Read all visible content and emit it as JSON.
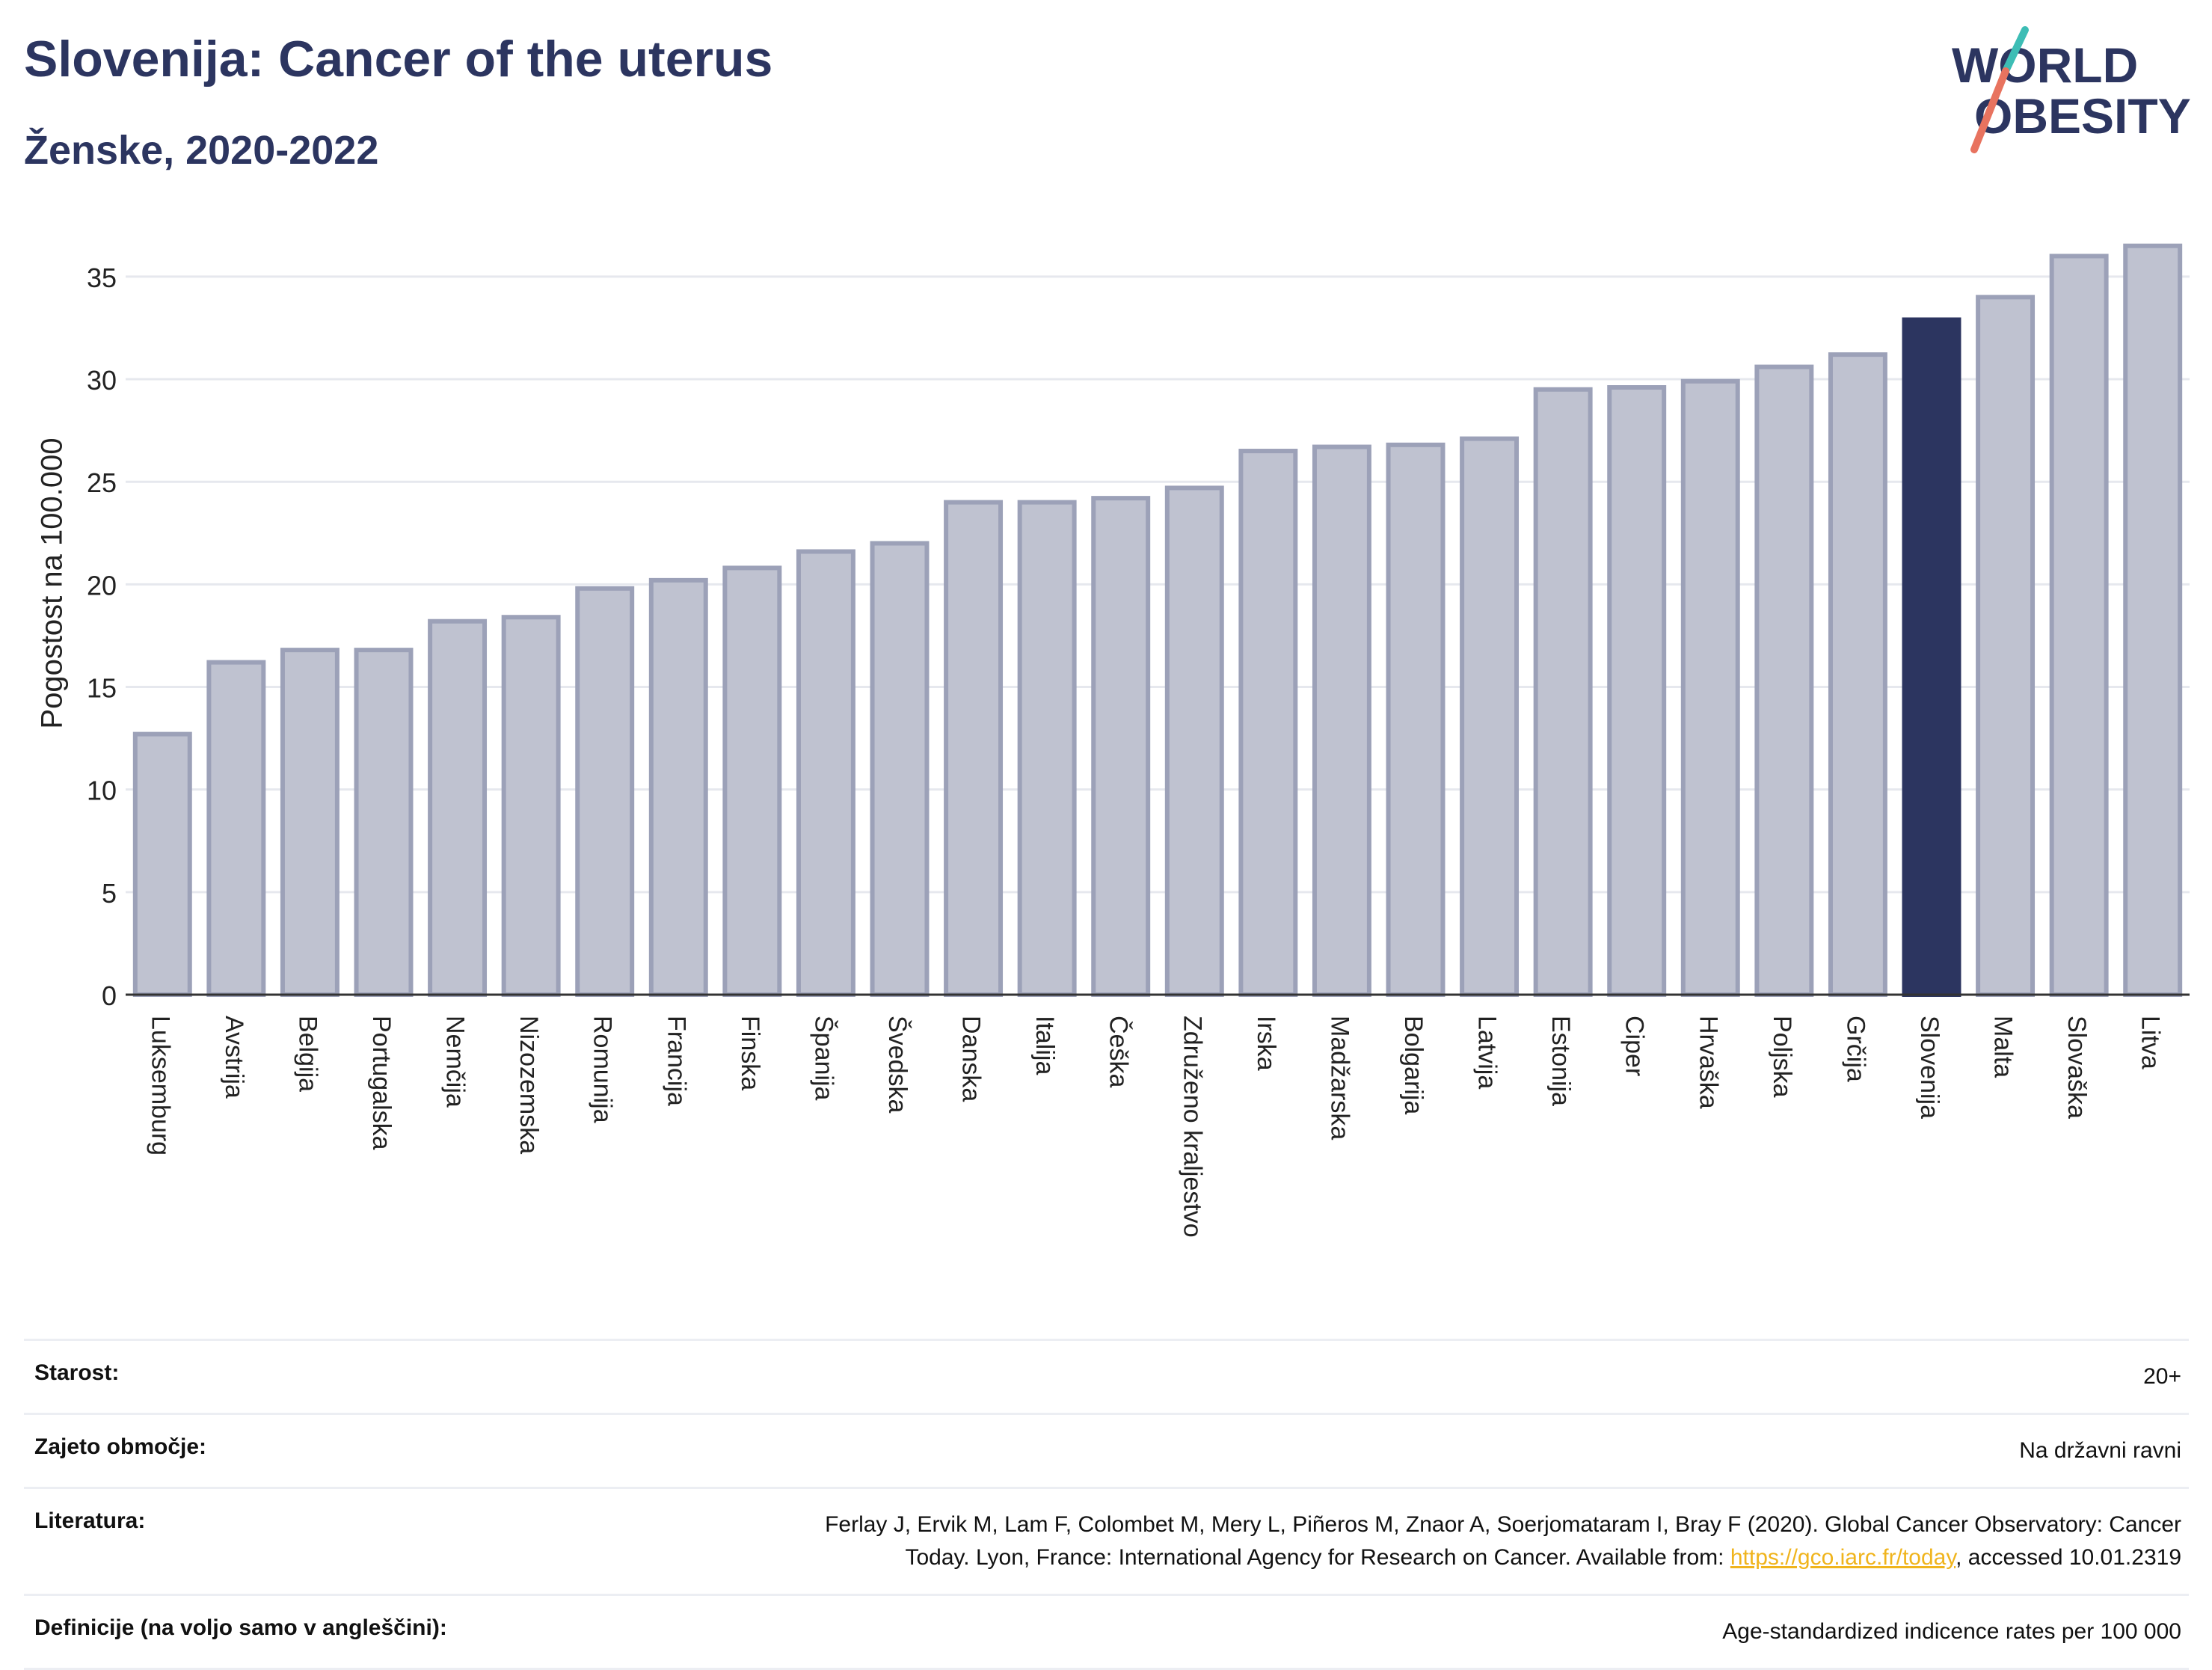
{
  "header": {
    "title": "Slovenija: Cancer of the uterus",
    "subtitle": "Ženske, 2020-2022"
  },
  "logo": {
    "line1": "WORLD",
    "line2": "OBESITY",
    "colors": {
      "text": "#2c3560",
      "slash_teal": "#3dbdb5",
      "slash_coral": "#e8735f"
    }
  },
  "chart_data": {
    "type": "bar",
    "ylabel": "Pogostost na 100.000",
    "ylim": [
      0,
      37
    ],
    "yticks": [
      0,
      5,
      10,
      15,
      20,
      25,
      30,
      35
    ],
    "grid": true,
    "categories": [
      "Luksemburg",
      "Avstrija",
      "Belgija",
      "Portugalska",
      "Nemčija",
      "Nizozemska",
      "Romunija",
      "Francija",
      "Finska",
      "Španija",
      "Švedska",
      "Danska",
      "Italija",
      "Češka",
      "Združeno kraljestvo",
      "Irska",
      "Madžarska",
      "Bolgarija",
      "Latvija",
      "Estonija",
      "Ciper",
      "Hrvaška",
      "Poljska",
      "Grčija",
      "Slovenija",
      "Malta",
      "Slovaška",
      "Litva"
    ],
    "values": [
      12.7,
      16.2,
      16.8,
      16.8,
      18.2,
      18.4,
      19.8,
      20.2,
      20.8,
      21.6,
      22.0,
      24.0,
      24.0,
      24.2,
      24.7,
      26.5,
      26.7,
      26.8,
      27.1,
      29.5,
      29.6,
      29.9,
      30.6,
      31.2,
      32.9,
      34.0,
      36.0,
      36.5
    ],
    "highlight": "Slovenija",
    "colors": {
      "bar": "#bfc2d0",
      "bar_border": "#9ca1b8",
      "highlight": "#2c3560"
    }
  },
  "info": {
    "age_label": "Starost:",
    "age_value": "20+",
    "coverage_label": "Zajeto območje:",
    "coverage_value": "Na državni ravni",
    "reference_label": "Literatura:",
    "reference_text_1": "Ferlay J, Ervik M, Lam F, Colombet M, Mery L, Piñeros M, Znaor A, Soerjomataram I, Bray F (2020). Global Cancer Observatory: Cancer",
    "reference_text_2": "Today. Lyon, France: International Agency for Research on Cancer. Available from: ",
    "reference_link": "https://gco.iarc.fr/today",
    "reference_text_3": ", accessed 10.01.2319",
    "definitions_label": "Definicije (na voljo samo v angleščini):",
    "definitions_value": "Age-standardized indicence rates per 100 000"
  }
}
